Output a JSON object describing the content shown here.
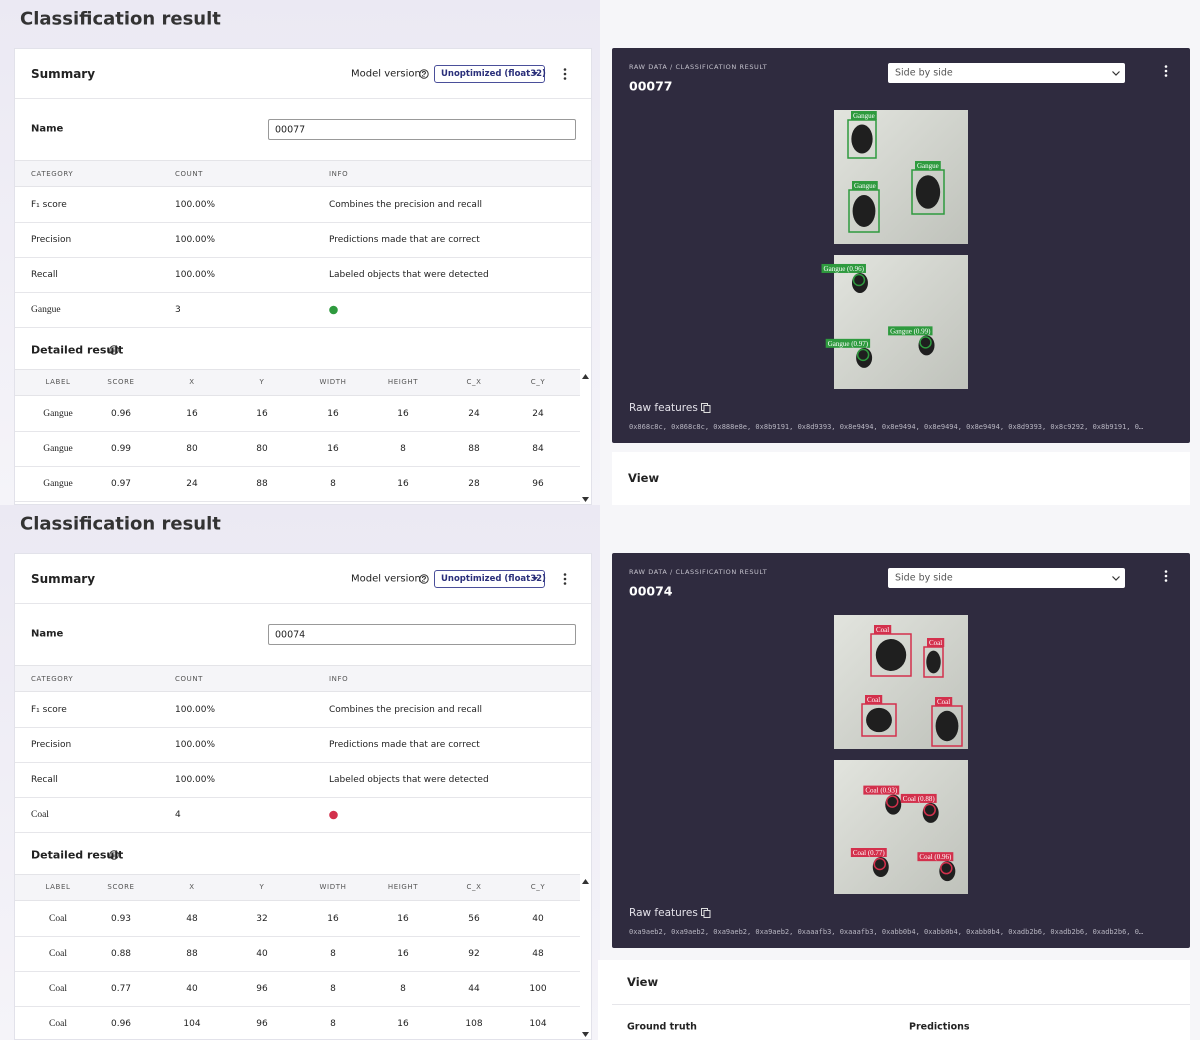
{
  "panels": [
    {
      "title": "Classification result",
      "summary": {
        "heading": "Summary",
        "model_version_label": "Model version:",
        "model_version": "Unoptimized (float32)",
        "name_label": "Name",
        "name": "00077"
      },
      "metrics": {
        "columns": [
          "CATEGORY",
          "COUNT",
          "INFO"
        ],
        "rows": [
          [
            "F₁ score",
            "100.00%",
            "Combines the precision and recall"
          ],
          [
            "Precision",
            "100.00%",
            "Predictions made that are correct"
          ],
          [
            "Recall",
            "100.00%",
            "Labeled objects that were detected"
          ]
        ]
      },
      "class_row": {
        "label": "Gangue",
        "count": 3,
        "color": "#2e9a3e"
      },
      "detailed": {
        "heading": "Detailed result",
        "columns": [
          "LABEL",
          "SCORE",
          "X",
          "Y",
          "WIDTH",
          "HEIGHT",
          "C_X",
          "C_Y"
        ],
        "rows": [
          [
            "Gangue",
            0.96,
            16,
            16,
            16,
            16,
            24,
            24
          ],
          [
            "Gangue",
            0.99,
            80,
            80,
            16,
            8,
            88,
            84
          ],
          [
            "Gangue",
            0.97,
            24,
            88,
            8,
            16,
            28,
            96
          ]
        ]
      },
      "viewer": {
        "breadcrumb": "RAW DATA / CLASSIFICATION RESULT",
        "sample": "00077",
        "view_mode": "Side by side",
        "ground_truth_labels": [
          "Gangue",
          "Gangue",
          "Gangue"
        ],
        "prediction_labels": [
          "Gangue (0.96)",
          "Gangue (0.99)",
          "Gangue (0.97)"
        ],
        "raw_features_label": "Raw features",
        "raw_features": "0x868c8c, 0x868c8c, 0x888e8e, 0x8b9191, 0x8d9393, 0x8e9494, 0x8e9494, 0x8e9494, 0x8e9494, 0x8d9393, 0x8c9292, 0x8b9191, 0…"
      },
      "view": {
        "heading": "View"
      }
    },
    {
      "title": "Classification result",
      "summary": {
        "heading": "Summary",
        "model_version_label": "Model version:",
        "model_version": "Unoptimized (float32)",
        "name_label": "Name",
        "name": "00074"
      },
      "metrics": {
        "columns": [
          "CATEGORY",
          "COUNT",
          "INFO"
        ],
        "rows": [
          [
            "F₁ score",
            "100.00%",
            "Combines the precision and recall"
          ],
          [
            "Precision",
            "100.00%",
            "Predictions made that are correct"
          ],
          [
            "Recall",
            "100.00%",
            "Labeled objects that were detected"
          ]
        ]
      },
      "class_row": {
        "label": "Coal",
        "count": 4,
        "color": "#d3304c"
      },
      "detailed": {
        "heading": "Detailed result",
        "columns": [
          "LABEL",
          "SCORE",
          "X",
          "Y",
          "WIDTH",
          "HEIGHT",
          "C_X",
          "C_Y"
        ],
        "rows": [
          [
            "Coal",
            0.93,
            48,
            32,
            16,
            16,
            56,
            40
          ],
          [
            "Coal",
            0.88,
            88,
            40,
            8,
            16,
            92,
            48
          ],
          [
            "Coal",
            0.77,
            40,
            96,
            8,
            8,
            44,
            100
          ],
          [
            "Coal",
            0.96,
            104,
            96,
            8,
            16,
            108,
            104
          ]
        ]
      },
      "viewer": {
        "breadcrumb": "RAW DATA / CLASSIFICATION RESULT",
        "sample": "00074",
        "view_mode": "Side by side",
        "ground_truth_labels": [
          "Coal",
          "Coal",
          "Coal",
          "Coal"
        ],
        "prediction_labels": [
          "Coal (0.93)",
          "Coal (0.88)",
          "Coal (0.77)",
          "Coal (0.96)"
        ],
        "raw_features_label": "Raw features",
        "raw_features": "0xa9aeb2, 0xa9aeb2, 0xa9aeb2, 0xa9aeb2, 0xaaafb3, 0xaaafb3, 0xabb0b4, 0xabb0b4, 0xabb0b4, 0xadb2b6, 0xadb2b6, 0xadb2b6, 0…"
      },
      "view": {
        "heading": "View",
        "columns": [
          "Ground truth",
          "Predictions"
        ]
      }
    }
  ]
}
